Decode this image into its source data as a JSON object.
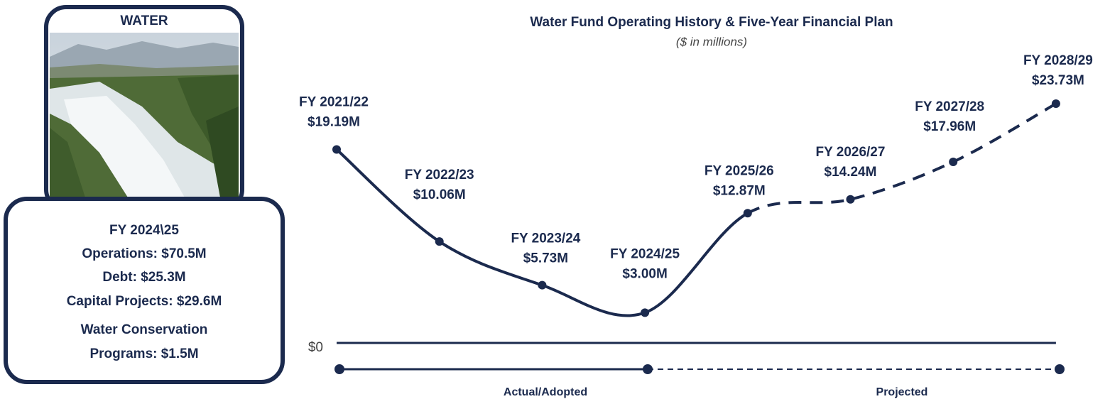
{
  "panel": {
    "label": "WATER",
    "details": [
      "FY 2024\\25",
      "Operations: $70.5M",
      "Debt: $25.3M",
      "Capital Projects: $29.6M",
      "Water Conservation",
      "Programs: $1.5M"
    ]
  },
  "chart_data": {
    "type": "line",
    "title": "Water Fund Operating History & Five-Year Financial Plan",
    "subtitle": "($ in millions)",
    "categories": [
      "FY 2021/22",
      "FY 2022/23",
      "FY 2023/24",
      "FY 2024/25",
      "FY 2025/26",
      "FY 2026/27",
      "FY 2027/28",
      "FY 2028/29"
    ],
    "values": [
      19.19,
      10.06,
      5.73,
      3.0,
      12.87,
      14.24,
      17.96,
      23.73
    ],
    "value_labels": [
      "$19.19M",
      "$10.06M",
      "$5.73M",
      "$3.00M",
      "$12.87M",
      "$14.24M",
      "$17.96M",
      "$23.73M"
    ],
    "color": "#1b2a4e",
    "ylim": [
      0,
      25
    ],
    "yticks": [
      {
        "value": 0,
        "label": "$0"
      }
    ],
    "periods": [
      "Actual/Adopted",
      "Projected"
    ]
  }
}
